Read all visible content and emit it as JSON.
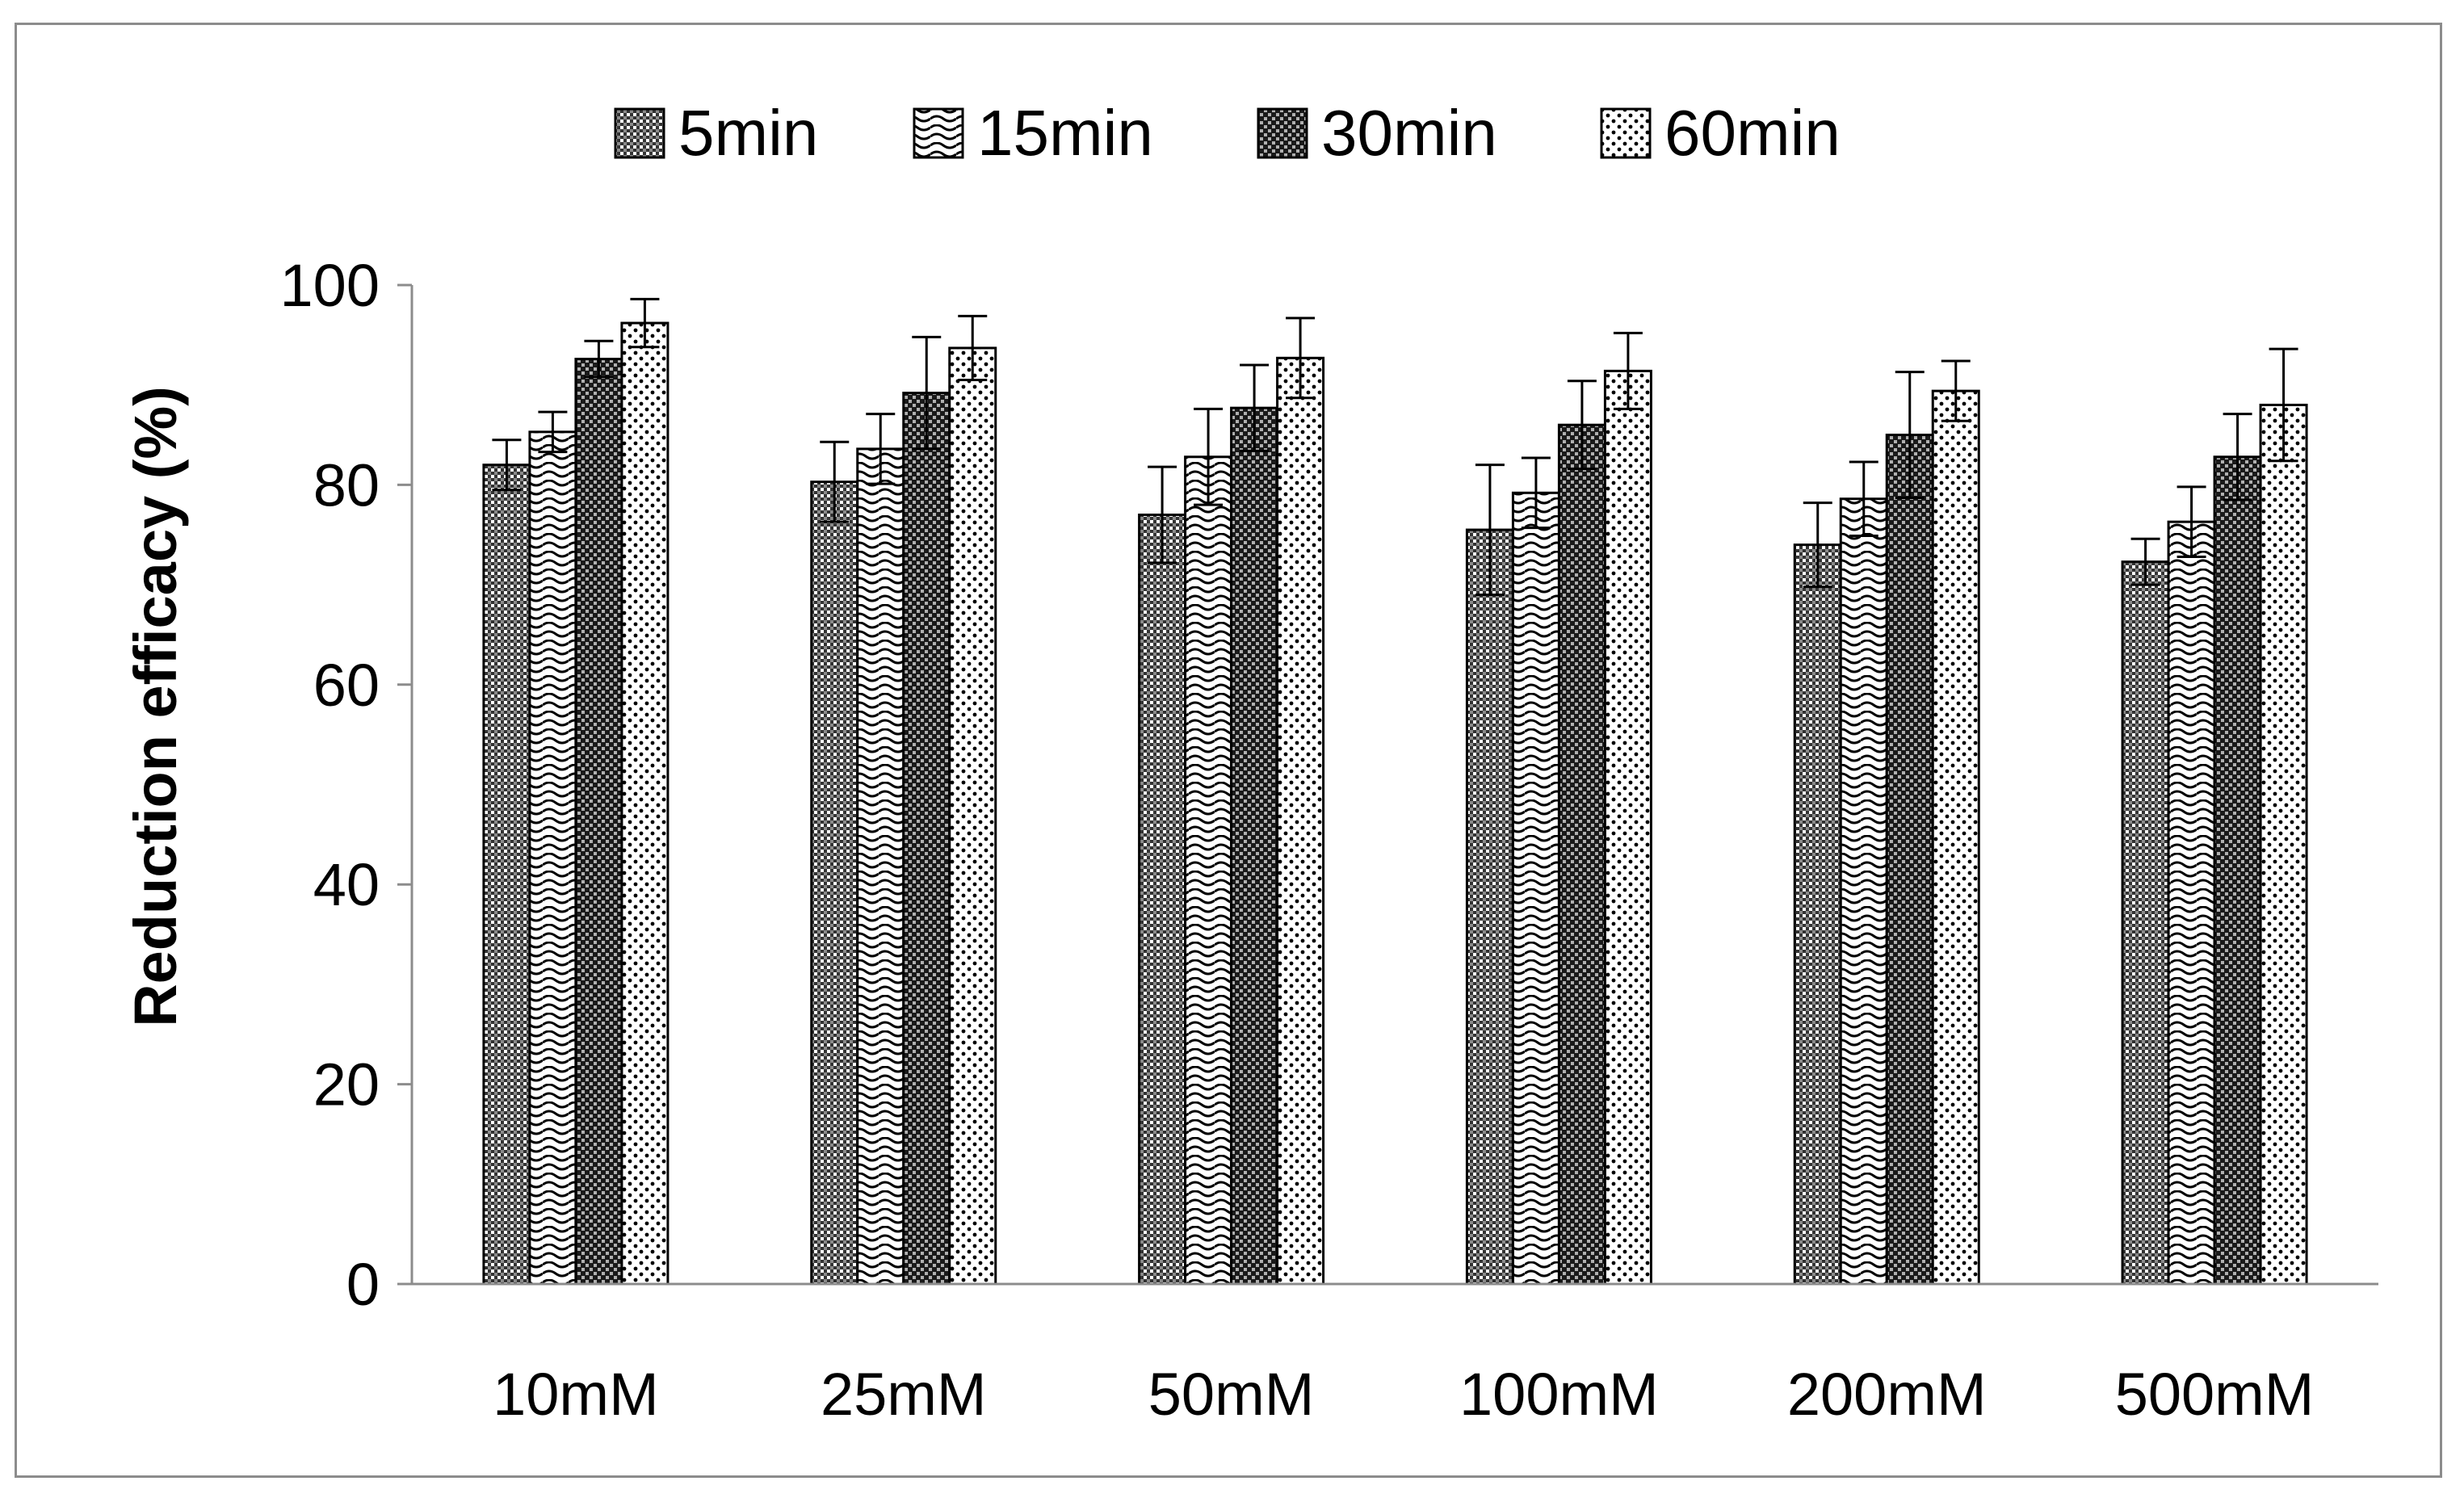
{
  "chart_data": {
    "type": "bar",
    "categories": [
      "10mM",
      "25mM",
      "50mM",
      "100mM",
      "200mM",
      "500mM"
    ],
    "series": [
      {
        "name": "5min",
        "values": [
          82,
          80.3,
          77,
          75.5,
          74,
          72.3
        ],
        "errors": [
          2.5,
          4,
          4.8,
          6.5,
          4.2,
          2.3
        ],
        "pattern": "checker-dense"
      },
      {
        "name": "15min",
        "values": [
          85.3,
          83.6,
          82.8,
          79.2,
          78.6,
          76.3
        ],
        "errors": [
          2,
          3.5,
          4.8,
          3.5,
          3.7,
          3.5
        ],
        "pattern": "wave"
      },
      {
        "name": "30min",
        "values": [
          92.6,
          89.2,
          87.7,
          86,
          85,
          82.8
        ],
        "errors": [
          1.8,
          5.6,
          4.3,
          4.4,
          6.3,
          4.3
        ],
        "pattern": "checker-dark"
      },
      {
        "name": "60min",
        "values": [
          96.2,
          93.7,
          92.7,
          91.4,
          89.4,
          88
        ],
        "errors": [
          2.4,
          3.2,
          4,
          3.8,
          3,
          5.6
        ],
        "pattern": "dots"
      }
    ],
    "ylabel": "Reduction efficacy (%)",
    "ylim": [
      0,
      100
    ],
    "yticks": [
      0,
      20,
      40,
      60,
      80,
      100
    ],
    "grid": false,
    "legend_position": "top",
    "colors": {
      "bar_stroke": "#000000",
      "axis": "#8c8c8c",
      "frame": "#8c8c8c"
    }
  }
}
